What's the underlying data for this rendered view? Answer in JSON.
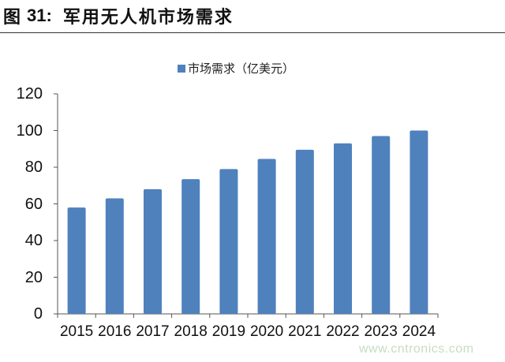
{
  "header": {
    "figure_prefix": "图",
    "figure_number": "31:",
    "figure_title": "军用无人机市场需求"
  },
  "legend": {
    "label": "市场需求（亿美元）",
    "color": "#4f81bd"
  },
  "watermark": "www.cntronics.com",
  "chart_data": {
    "type": "bar",
    "title": "军用无人机市场需求",
    "xlabel": "",
    "ylabel": "",
    "categories": [
      "2015",
      "2016",
      "2017",
      "2018",
      "2019",
      "2020",
      "2021",
      "2022",
      "2023",
      "2024"
    ],
    "series": [
      {
        "name": "市场需求（亿美元）",
        "color": "#4f81bd",
        "values": [
          58,
          63,
          68,
          73.5,
          79,
          84.5,
          89.5,
          93,
          97,
          100
        ]
      }
    ],
    "ylim": [
      0,
      120
    ],
    "yticks": [
      0,
      20,
      40,
      60,
      80,
      100,
      120
    ],
    "grid": false,
    "legend_position": "top"
  }
}
